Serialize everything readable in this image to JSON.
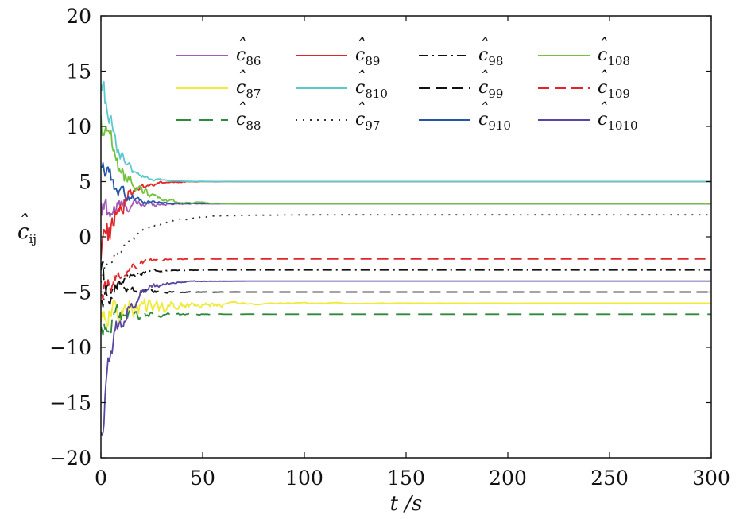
{
  "chart_data": {
    "type": "line",
    "xlabel": "t /s",
    "ylabel": "ĉij",
    "xlim": [
      0,
      300
    ],
    "ylim": [
      -20,
      20
    ],
    "xticks": [
      0,
      50,
      100,
      150,
      200,
      250,
      300
    ],
    "yticks": [
      -20,
      -15,
      -10,
      -5,
      0,
      5,
      10,
      15,
      20
    ],
    "grid": false,
    "legend": "top",
    "series": [
      {
        "name": "ĉ86",
        "sub": "86",
        "color": "#a25ab5",
        "dash": "solid",
        "initial": 2.0,
        "final": 3.0,
        "tau": 8.0,
        "noise": 1.5
      },
      {
        "name": "ĉ87",
        "sub": "87",
        "color": "#f0ea3a",
        "dash": "solid",
        "initial": -7.0,
        "final": -6.0,
        "tau": 25.0,
        "noise": 1.0
      },
      {
        "name": "ĉ88",
        "sub": "88",
        "color": "#2e8a3b",
        "dash": "longdash",
        "initial": -8.0,
        "final": -7.0,
        "tau": 10.0,
        "noise": 1.2
      },
      {
        "name": "ĉ89",
        "sub": "89",
        "color": "#e0262b",
        "dash": "solid",
        "initial": -3.0,
        "final": 5.0,
        "tau": 7.0,
        "noise": 2.0
      },
      {
        "name": "ĉ810",
        "sub": "810",
        "color": "#5cc8cc",
        "dash": "solid",
        "initial": 15.0,
        "final": 5.0,
        "tau": 7.0,
        "noise": 1.3
      },
      {
        "name": "ĉ97",
        "sub": "97",
        "color": "#333333",
        "dash": "dotted",
        "initial": -4.0,
        "final": 2.0,
        "tau": 15.0,
        "noise": 0.4
      },
      {
        "name": "ĉ98",
        "sub": "98",
        "color": "#111111",
        "dash": "dashdot",
        "initial": -6.0,
        "final": -3.0,
        "tau": 8.0,
        "noise": 1.0
      },
      {
        "name": "ĉ99",
        "sub": "99",
        "color": "#111111",
        "dash": "dashed",
        "initial": -4.0,
        "final": -5.0,
        "tau": 8.0,
        "noise": 1.2
      },
      {
        "name": "ĉ910",
        "sub": "910",
        "color": "#2356a8",
        "dash": "solid",
        "initial": 7.0,
        "final": 3.0,
        "tau": 8.0,
        "noise": 1.2
      },
      {
        "name": "ĉ108",
        "sub": "108",
        "color": "#72c13f",
        "dash": "solid",
        "initial": 11.0,
        "final": 3.0,
        "tau": 10.0,
        "noise": 1.5
      },
      {
        "name": "ĉ109",
        "sub": "109",
        "color": "#e0262b",
        "dash": "dashed",
        "initial": -6.0,
        "final": -2.0,
        "tau": 8.0,
        "noise": 1.2
      },
      {
        "name": "ĉ1010",
        "sub": "1010",
        "color": "#5a45a2",
        "dash": "solid",
        "initial": -16.0,
        "final": -4.0,
        "tau": 8.0,
        "noise": 2.0
      }
    ]
  }
}
